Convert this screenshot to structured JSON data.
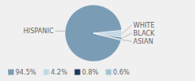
{
  "chart_data": {
    "type": "pie",
    "categories": [
      "HISPANIC",
      "WHITE",
      "BLACK",
      "ASIAN"
    ],
    "values": [
      94.5,
      4.2,
      0.8,
      0.6
    ],
    "value_labels": [
      "94.5%",
      "4.2%",
      "0.8%",
      "0.6%"
    ],
    "colors": [
      "#7a9db5",
      "#c4d9e6",
      "#1e3a5c",
      "#a8c4d2"
    ],
    "legend": "bottom"
  }
}
